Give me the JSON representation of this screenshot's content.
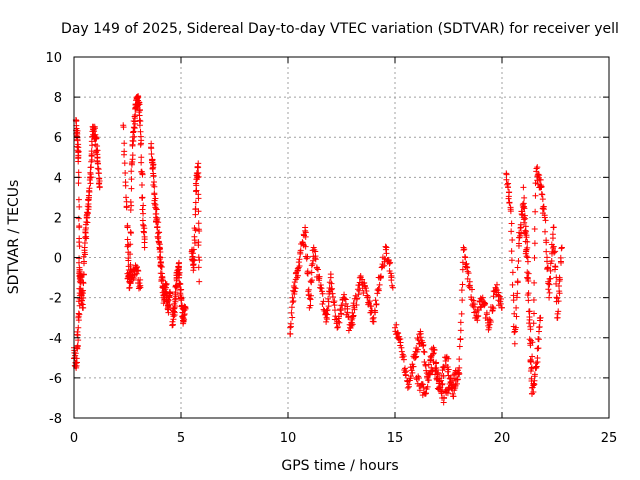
{
  "chart_data": {
    "type": "scatter",
    "title": "Day 149 of 2025, Sidereal Day-to-day VTEC variation (SDTVAR) for receiver yell",
    "xlabel": "GPS time / hours",
    "ylabel": "SDTVAR / TECUs",
    "xlim": [
      0,
      25
    ],
    "ylim": [
      -8,
      10
    ],
    "xticks": [
      0,
      5,
      10,
      15,
      20,
      25
    ],
    "yticks": [
      -8,
      -6,
      -4,
      -2,
      0,
      2,
      4,
      6,
      8,
      10
    ],
    "grid": true,
    "marker": "+",
    "color": "#ff0000",
    "series": [
      {
        "name": "SDTVAR",
        "segments": [
          {
            "x": [
              0.0,
              0.1,
              0.2,
              0.3,
              0.4,
              0.5,
              0.6,
              0.7,
              0.8,
              0.9,
              1.0,
              1.1,
              1.2
            ],
            "y": [
              -4.5,
              -5.5,
              -3.5,
              -1.0,
              -2.5,
              0.5,
              2.0,
              3.0,
              4.5,
              6.5,
              6.0,
              5.0,
              3.5
            ]
          },
          {
            "x": [
              0.1,
              0.15,
              0.2,
              0.25,
              0.3
            ],
            "y": [
              6.8,
              6.0,
              5.0,
              -0.5,
              -1.0
            ]
          },
          {
            "x": [
              2.3,
              2.5,
              2.6,
              2.7,
              2.8,
              2.9,
              3.0,
              3.1,
              3.2,
              3.3
            ],
            "y": [
              6.6,
              1.5,
              -1.5,
              4.7,
              6.5,
              7.5,
              8.0,
              6.8,
              3.0,
              0.5
            ]
          },
          {
            "x": [
              2.5,
              2.7,
              2.9,
              3.1
            ],
            "y": [
              -0.8,
              -1.0,
              -0.5,
              -1.5
            ]
          },
          {
            "x": [
              3.6,
              3.7,
              3.8,
              3.9,
              4.0,
              4.1,
              4.2,
              4.3,
              4.4,
              4.5
            ],
            "y": [
              5.5,
              4.5,
              2.5,
              1.5,
              0.5,
              -1.0,
              -2.0,
              -1.5,
              -2.5,
              -1.8
            ]
          },
          {
            "x": [
              4.6,
              4.7,
              4.8,
              4.9,
              5.0,
              5.1,
              5.2
            ],
            "y": [
              -3.2,
              -2.5,
              -1.0,
              -0.5,
              -2.0,
              -3.0,
              -2.5
            ]
          },
          {
            "x": [
              5.5,
              5.6,
              5.7,
              5.8,
              5.85
            ],
            "y": [
              0.3,
              -0.5,
              3.3,
              4.5,
              -1.2
            ]
          },
          {
            "x": [
              10.1,
              10.3,
              10.5,
              10.8,
              11.0,
              11.2,
              11.5,
              11.8,
              12.0,
              12.3,
              12.6,
              12.9,
              13.1,
              13.4,
              13.7,
              14.0,
              14.3,
              14.6,
              14.9
            ],
            "y": [
              -3.8,
              -1.5,
              -0.5,
              1.5,
              -2.5,
              0.5,
              -1.5,
              -3.0,
              -1.0,
              -3.5,
              -2.0,
              -3.5,
              -2.5,
              -1.0,
              -2.0,
              -3.0,
              -1.0,
              0.5,
              -1.5
            ]
          },
          {
            "x": [
              15.0,
              15.3,
              15.6,
              15.9,
              16.2,
              16.5,
              16.8,
              17.1,
              17.4,
              17.7,
              18.0,
              18.2,
              18.5,
              18.8,
              19.1,
              19.4,
              19.7,
              20.0
            ],
            "y": [
              -3.5,
              -4.5,
              -6.5,
              -5.0,
              -3.8,
              -6.0,
              -4.5,
              -6.5,
              -5.0,
              -6.8,
              -5.5,
              0.5,
              -1.5,
              -3.0,
              -2.0,
              -3.5,
              -1.5,
              -2.5
            ]
          },
          {
            "x": [
              16.0,
              16.4,
              16.8,
              17.2,
              17.6,
              18.0
            ],
            "y": [
              -6.0,
              -6.8,
              -5.2,
              -7.0,
              -6.2,
              -5.8
            ]
          },
          {
            "x": [
              20.2,
              20.4,
              20.6,
              20.8,
              21.0,
              21.2,
              21.4,
              21.6,
              21.8,
              22.0,
              22.2,
              22.4,
              22.6,
              22.8
            ],
            "y": [
              4.2,
              2.5,
              -4.3,
              1.0,
              2.5,
              -1.0,
              -6.5,
              4.3,
              3.5,
              2.0,
              -2.0,
              1.5,
              -3.0,
              0.5
            ]
          },
          {
            "x": [
              21.0,
              21.2,
              21.4,
              21.6,
              21.8
            ],
            "y": [
              3.5,
              0.0,
              -6.8,
              -5.5,
              -3.0
            ]
          }
        ]
      }
    ]
  }
}
